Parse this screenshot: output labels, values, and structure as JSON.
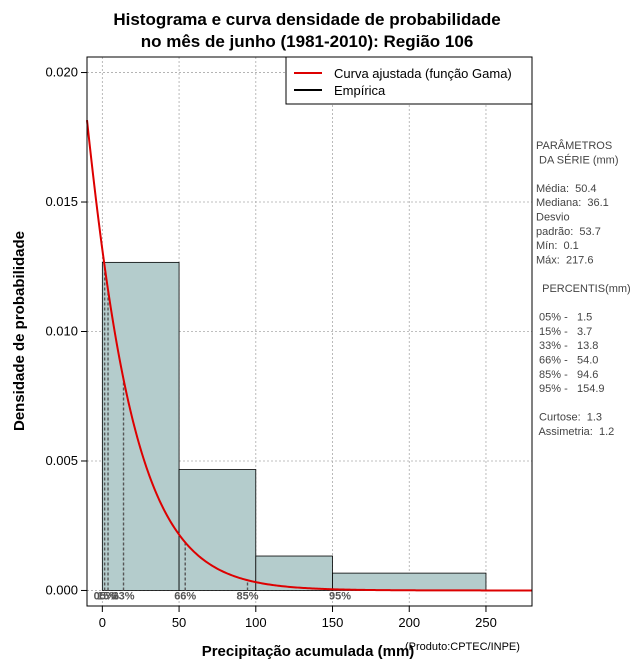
{
  "chart_data": {
    "type": "bar",
    "title_lines": [
      "Histograma e curva densidade de probabilidade",
      "no mês de junho (1981-2010): Região 106"
    ],
    "xlabel": "Precipitação acumulada (mm)",
    "ylabel": "Densidade de probabilidade",
    "credit": "(Produto:CPTEC/INPE)",
    "xlim": [
      -10,
      280
    ],
    "ylim": [
      -0.0006,
      0.0206
    ],
    "x_ticks": [
      0,
      50,
      100,
      150,
      200,
      250
    ],
    "x_tick_labels": [
      "0",
      "50",
      "100",
      "150",
      "200",
      "250"
    ],
    "y_ticks": [
      0,
      0.005,
      0.01,
      0.015,
      0.02
    ],
    "y_tick_labels": [
      "0.000",
      "0.005",
      "0.010",
      "0.015",
      "0.020"
    ],
    "grid": true,
    "histogram": {
      "name": "Empírica",
      "bins": [
        {
          "x0": 0,
          "x1": 50,
          "density": 0.01267
        },
        {
          "x0": 50,
          "x1": 100,
          "density": 0.00467
        },
        {
          "x0": 100,
          "x1": 150,
          "density": 0.00133
        },
        {
          "x0": 150,
          "x1": 250,
          "density": 0.00067
        }
      ],
      "fill": "#b4cccc",
      "stroke": "#000000"
    },
    "curve": {
      "name": "Curva ajustada (função Gama)",
      "color": "#dd0000",
      "shape": 1.2,
      "scale": 25,
      "offset": -31
    },
    "legend": {
      "placement": "top-right",
      "entries": [
        {
          "label": "Curva ajustada (função Gama)",
          "color": "#dd0000"
        },
        {
          "label": "Empírica",
          "color": "#000000"
        }
      ]
    },
    "percentiles": [
      {
        "x": 1.5,
        "label": "05%"
      },
      {
        "x": 3.7,
        "label": "15%"
      },
      {
        "x": 13.8,
        "label": "33%"
      },
      {
        "x": 54.0,
        "label": "66%"
      },
      {
        "x": 94.6,
        "label": "85%"
      },
      {
        "x": 154.9,
        "label": "95%"
      }
    ]
  },
  "side_panel": {
    "lines": [
      "PARÂMETROS",
      " DA SÉRIE (mm)",
      "",
      "Média:  50.4",
      "Mediana:  36.1",
      "Desvio",
      "padrão:  53.7",
      "Mín:  0.1",
      "Máx:  217.6",
      "",
      "  PERCENTIS(mm)",
      "",
      " 05% -   1.5",
      " 15% -   3.7",
      " 33% -   13.8",
      " 66% -   54.0",
      " 85% -   94.6",
      " 95% -   154.9",
      "",
      " Curtose:  1.3",
      " Assimetria:  1.2"
    ]
  }
}
